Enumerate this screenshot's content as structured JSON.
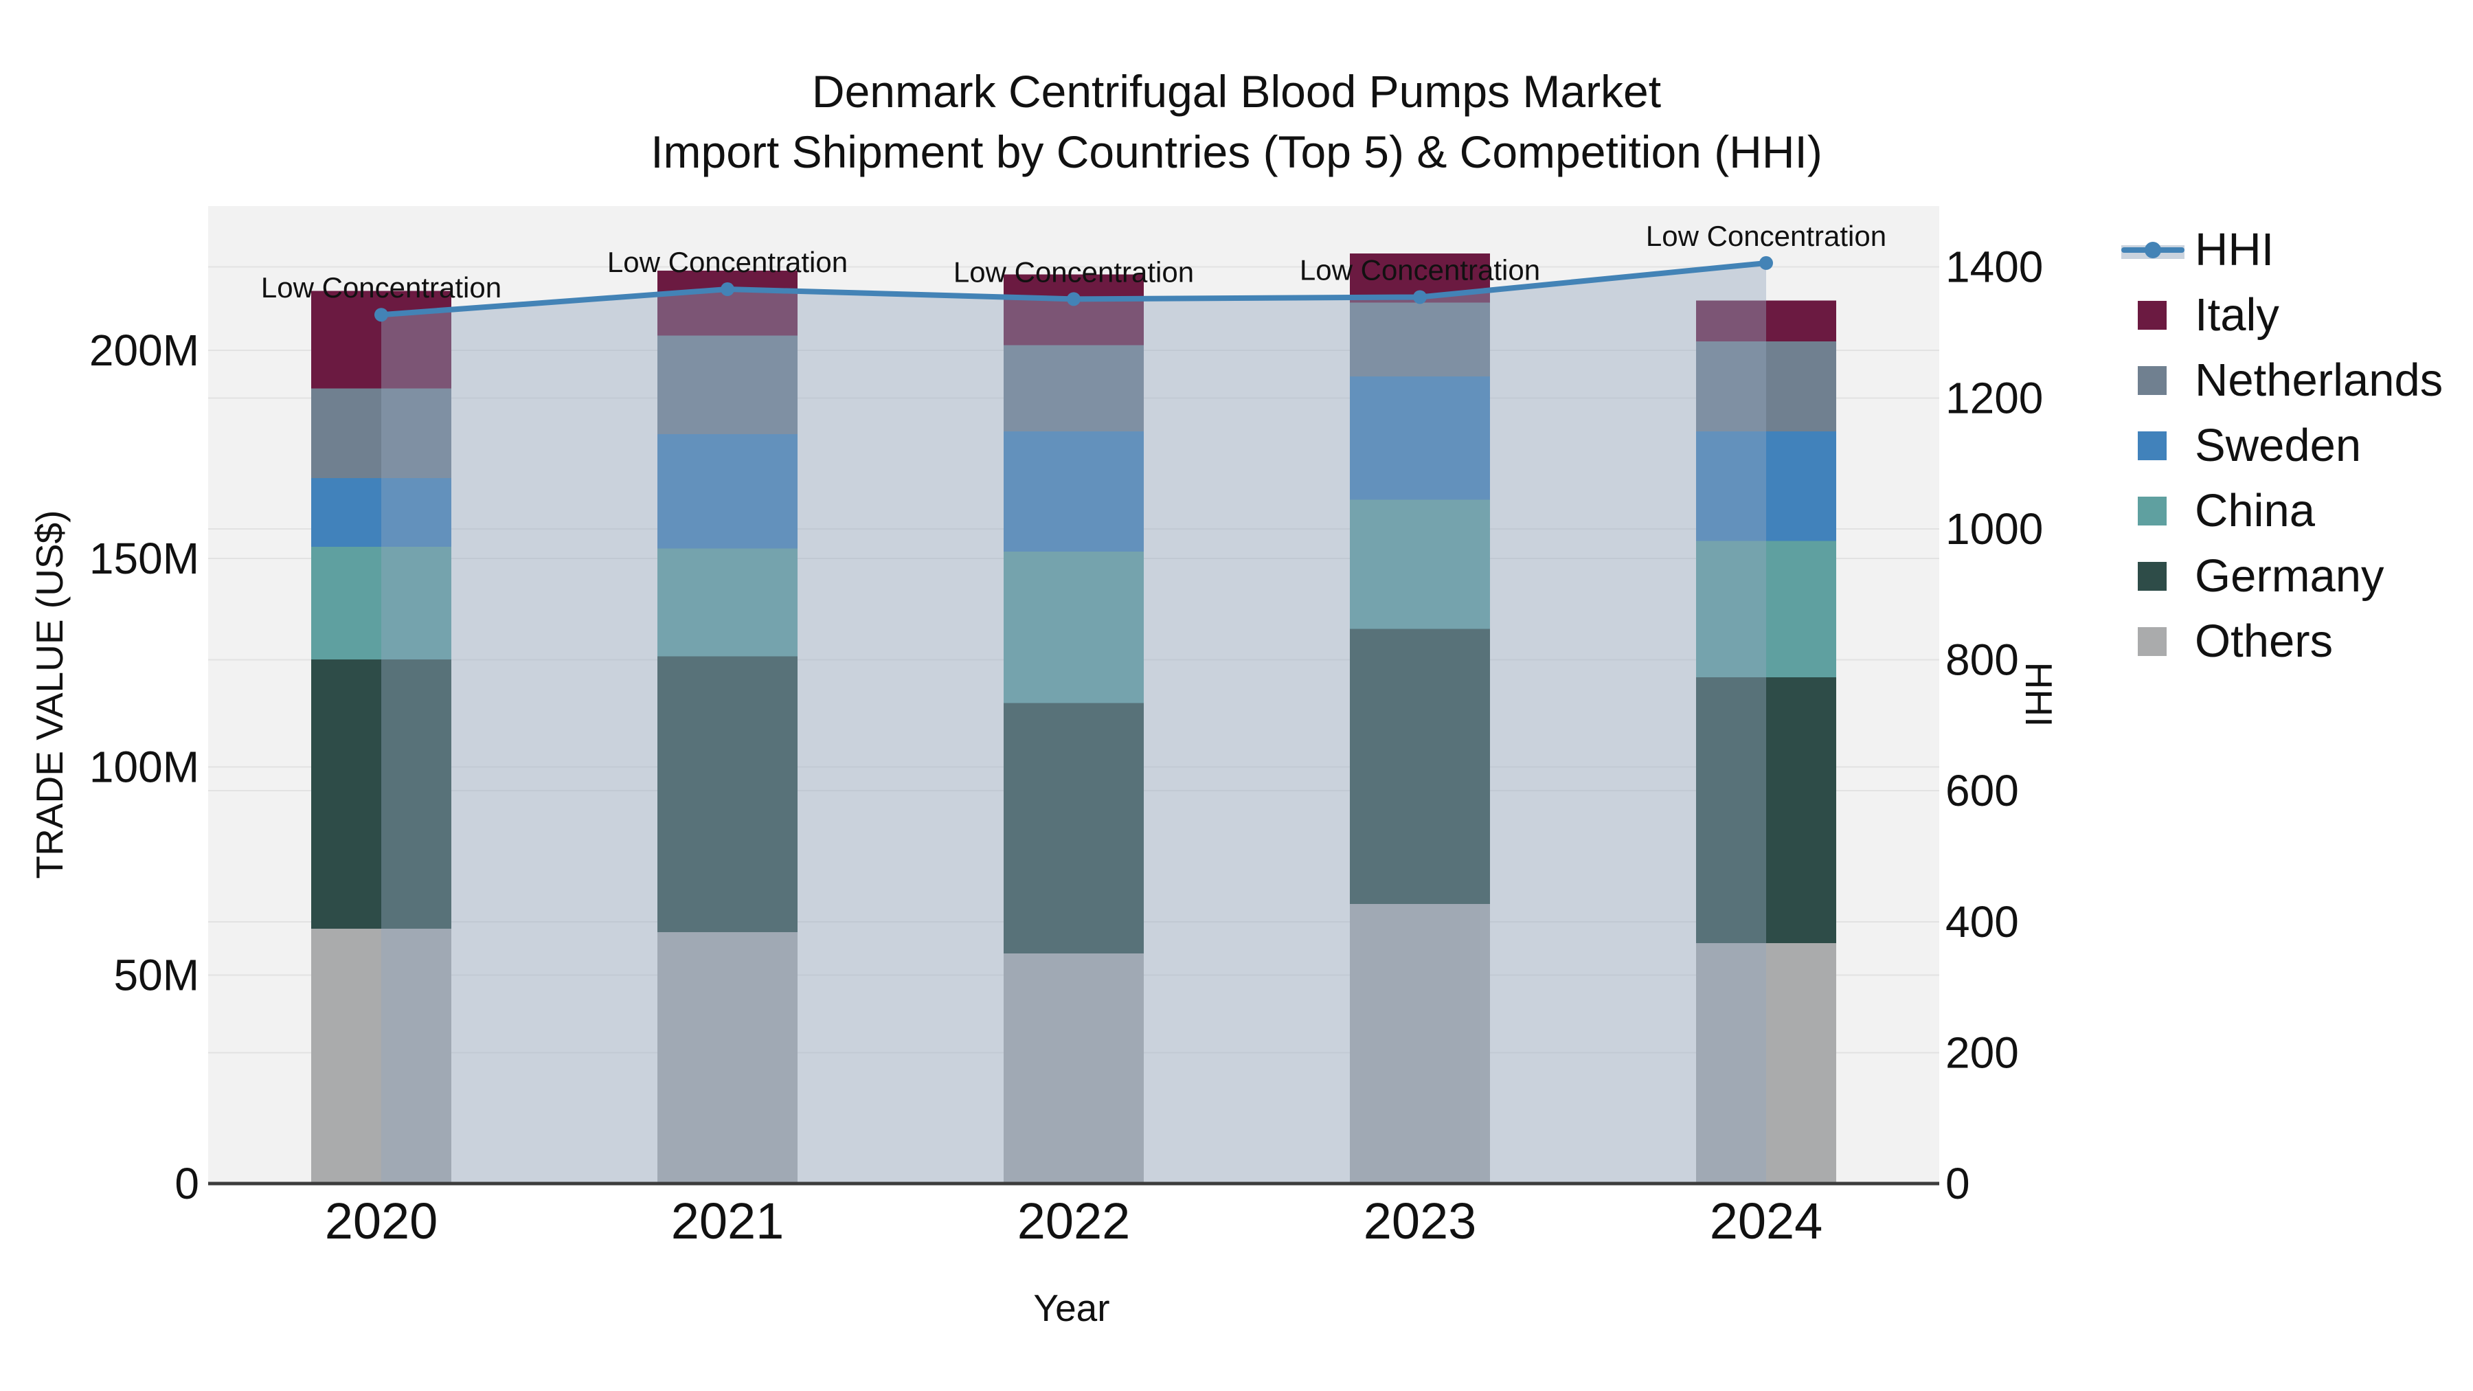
{
  "title": {
    "line1": "Denmark Centrifugal Blood Pumps Market",
    "line2": "Import Shipment by Countries (Top 5) & Competition (HHI)"
  },
  "chart_data": {
    "type": "bar+line",
    "categories": [
      "2020",
      "2021",
      "2022",
      "2023",
      "2024"
    ],
    "xlabel": "Year",
    "ylabel_left": "TRADE VALUE (US$)",
    "ylabel_right": "HHI",
    "y_left_ticks": [
      "0",
      "50M",
      "100M",
      "150M",
      "200M"
    ],
    "y_left_tick_values": [
      0,
      50,
      100,
      150,
      200
    ],
    "y_left_range": [
      0,
      234.6
    ],
    "y_right_ticks": [
      "0",
      "200",
      "400",
      "600",
      "800",
      "1000",
      "1200",
      "1400"
    ],
    "y_right_tick_values": [
      0,
      200,
      400,
      600,
      800,
      1000,
      1200,
      1400
    ],
    "y_right_range": [
      0,
      1493
    ],
    "values_unit": "M US$ (millions)",
    "series": [
      {
        "name": "Italy",
        "color": "#6b1a41",
        "values": [
          23.4,
          15.6,
          17.0,
          11.8,
          9.8
        ]
      },
      {
        "name": "Netherlands",
        "color": "#708090",
        "values": [
          21.5,
          23.6,
          20.7,
          17.7,
          21.6
        ]
      },
      {
        "name": "Sweden",
        "color": "#4182bb",
        "values": [
          16.5,
          27.5,
          28.8,
          29.6,
          26.3
        ]
      },
      {
        "name": "China",
        "color": "#5fa0a0",
        "values": [
          27.0,
          25.9,
          36.4,
          31.0,
          32.7
        ]
      },
      {
        "name": "Germany",
        "color": "#2e4c48",
        "values": [
          64.6,
          66.2,
          60.1,
          66.0,
          63.8
        ]
      },
      {
        "name": "Others",
        "color": "#aaabac",
        "values": [
          61.2,
          60.3,
          55.2,
          67.1,
          57.7
        ]
      }
    ],
    "stack_order_bottom_to_top": [
      "Others",
      "Germany",
      "China",
      "Sweden",
      "Netherlands",
      "Italy"
    ],
    "hhi": {
      "label": "HHI",
      "color": "#4383b6",
      "marker": "circle",
      "area_fill": "rgba(148,167,190,0.42)",
      "legend_band_color": "#cad3de",
      "values": [
        1327,
        1366,
        1351,
        1354,
        1406
      ]
    },
    "annotation_text": "Low Concentration",
    "legend_position": "right",
    "grid": "on"
  },
  "colors": {
    "page_bg": "#ffffff",
    "plot_bg": "#f2f2f2",
    "grid": "#e2e2e2",
    "axis_line": "#3c3c3c",
    "text": "#111111"
  }
}
